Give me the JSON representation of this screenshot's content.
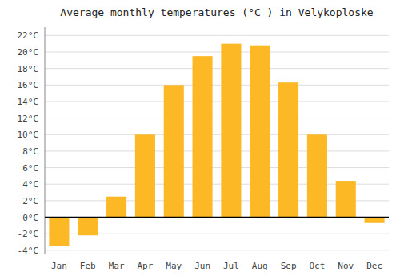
{
  "chart_data": {
    "type": "bar",
    "title": "Average monthly temperatures (°C ) in Velykoploske",
    "categories": [
      "Jan",
      "Feb",
      "Mar",
      "Apr",
      "May",
      "Jun",
      "Jul",
      "Aug",
      "Sep",
      "Oct",
      "Nov",
      "Dec"
    ],
    "values": [
      -3.5,
      -2.2,
      2.5,
      10.0,
      16.0,
      19.5,
      21.0,
      20.8,
      16.3,
      10.0,
      4.4,
      -0.7
    ],
    "color": "#FDB825",
    "ylim": [
      -4.5,
      23
    ],
    "yticks": [
      {
        "value": -4,
        "label": "-4°C"
      },
      {
        "value": -2,
        "label": "-2°C"
      },
      {
        "value": 0,
        "label": "0°C"
      },
      {
        "value": 2,
        "label": "2°C"
      },
      {
        "value": 4,
        "label": "4°C"
      },
      {
        "value": 6,
        "label": "6°C"
      },
      {
        "value": 8,
        "label": "8°C"
      },
      {
        "value": 10,
        "label": "10°C"
      },
      {
        "value": 12,
        "label": "12°C"
      },
      {
        "value": 14,
        "label": "14°C"
      },
      {
        "value": 16,
        "label": "16°C"
      },
      {
        "value": 18,
        "label": "18°C"
      },
      {
        "value": 20,
        "label": "20°C"
      },
      {
        "value": 22,
        "label": "22°C"
      }
    ],
    "grid": true
  }
}
